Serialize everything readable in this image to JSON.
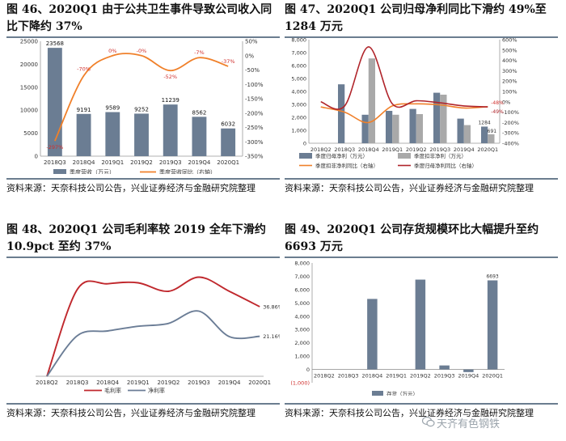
{
  "charts": [
    {
      "title": "图 46、2020Q1 由于公共卫生事件导致公司收入同比下降约 37%",
      "source": "资料来源：天奈科技公司公告，兴业证券经济与金融研究院整理"
    },
    {
      "title": "图 47、2020Q1 公司归母净利同比下滑约 49%至 1284 万元",
      "source": "资料来源：天奈科技公司公告，兴业证券经济与金融研究院整理"
    },
    {
      "title": "图 48、2020Q1 公司毛利率较 2019 全年下滑约 10.9pct 至约 37%",
      "source": "资料来源：天奈科技公司公告，兴业证券经济与金融研究院整理"
    },
    {
      "title": "图 49、2020Q1 公司存货规模环比大幅提升至约 6693 万元",
      "source": "资料来源：天奈科技公司公告，兴业证券经济与金融研究院整理"
    }
  ],
  "watermark": "天齐有色钢铁",
  "chart_data": [
    {
      "type": "bar+line",
      "categories": [
        "2018Q3",
        "2018Q4",
        "2019Q1",
        "2019Q2",
        "2019Q3",
        "2019Q4",
        "2020Q1"
      ],
      "series": [
        {
          "name": "季度营收（万元）",
          "axis": "left",
          "type": "bar",
          "values": [
            23568,
            9191,
            9589,
            9252,
            11239,
            8562,
            6032
          ],
          "labels": [
            "23568",
            "9191",
            "9589",
            "9252",
            "11239",
            "8562",
            "6032"
          ]
        },
        {
          "name": "季度营收同比（右轴）",
          "axis": "right",
          "type": "line",
          "values": [
            -297,
            -70,
            0,
            0,
            -52,
            -7,
            -37
          ],
          "labels": [
            "-297%",
            "-70%",
            "0%",
            "-0%",
            "-52%",
            "-7%",
            "-37%"
          ]
        }
      ],
      "yticks_left": [
        "0",
        "5000",
        "10000",
        "15000",
        "20000",
        "25000"
      ],
      "ylim_left": [
        0,
        25000
      ],
      "yticks_right": [
        "-350%",
        "-300%",
        "-250%",
        "-200%",
        "-150%",
        "-100%",
        "-50%",
        "0%",
        "50%"
      ],
      "ylim_right": [
        -350,
        50
      ]
    },
    {
      "type": "bar+line",
      "categories": [
        "2018Q2",
        "2018Q3",
        "2018Q4",
        "2019Q1",
        "2019Q2",
        "2019Q3",
        "2019Q4",
        "2020Q1"
      ],
      "series": [
        {
          "name": "季度归母净利（万元）",
          "axis": "left",
          "type": "bar",
          "values": [
            0,
            4550,
            2200,
            2500,
            2650,
            3900,
            1900,
            1284
          ]
        },
        {
          "name": "季度扣非净利（万元）",
          "axis": "left",
          "type": "bar",
          "values": [
            0,
            0,
            6550,
            2200,
            2250,
            3750,
            1400,
            691
          ]
        },
        {
          "name": "季度扣非净利同比（右轴）",
          "axis": "right",
          "type": "line",
          "values": [
            -50,
            -100,
            -200,
            -40,
            -20,
            -30,
            -60,
            -48
          ]
        },
        {
          "name": "季度归母净利同比（右轴）",
          "axis": "right",
          "type": "line",
          "values": [
            0,
            -40,
            530,
            -20,
            10,
            -10,
            -40,
            -49
          ]
        }
      ],
      "value_labels": {
        "bar1_last": "1284",
        "bar2_last": "691",
        "line1_last": "-48%",
        "line2_last": "-49%"
      },
      "yticks_left": [
        "0",
        "1,000",
        "2,000",
        "3,000",
        "4,000",
        "5,000",
        "6,000",
        "7,000",
        "8,000"
      ],
      "ylim_left": [
        0,
        8000
      ],
      "yticks_right": [
        "-400%",
        "-300%",
        "-200%",
        "-100%",
        "0%",
        "100%",
        "200%",
        "300%",
        "400%",
        "500%",
        "600%"
      ],
      "ylim_right": [
        -400,
        600
      ]
    },
    {
      "type": "line",
      "categories": [
        "2018Q2",
        "2018Q3",
        "2018Q4",
        "2019Q1",
        "2019Q2",
        "2019Q3",
        "2019Q4",
        "2020Q1"
      ],
      "series": [
        {
          "name": "毛利率",
          "values": [
            0,
            46,
            49,
            49.5,
            45,
            52.5,
            45,
            36.86
          ],
          "color": "#c0282d"
        },
        {
          "name": "净利率",
          "values": [
            0,
            21.5,
            24,
            26.5,
            28,
            34.5,
            21,
            21.16
          ],
          "color": "#6b7d96"
        }
      ],
      "end_labels": [
        "36.86%",
        "21.16%"
      ],
      "ylim": [
        0,
        60
      ]
    },
    {
      "type": "bar",
      "categories": [
        "2018Q2",
        "2018Q3",
        "2018Q4",
        "2019Q1",
        "2019Q2",
        "2019Q3",
        "2019Q4",
        "2020Q1"
      ],
      "series": [
        {
          "name": "存货（万元）",
          "values": [
            0,
            0,
            5300,
            0,
            6750,
            300,
            -200,
            6693
          ]
        }
      ],
      "last_label": "6693",
      "yticks": [
        "(1,000)",
        "0",
        "1,000",
        "2,000",
        "3,000",
        "4,000",
        "5,000",
        "6,000",
        "7,000",
        "8,000"
      ],
      "ylim": [
        -1000,
        8000
      ]
    }
  ]
}
